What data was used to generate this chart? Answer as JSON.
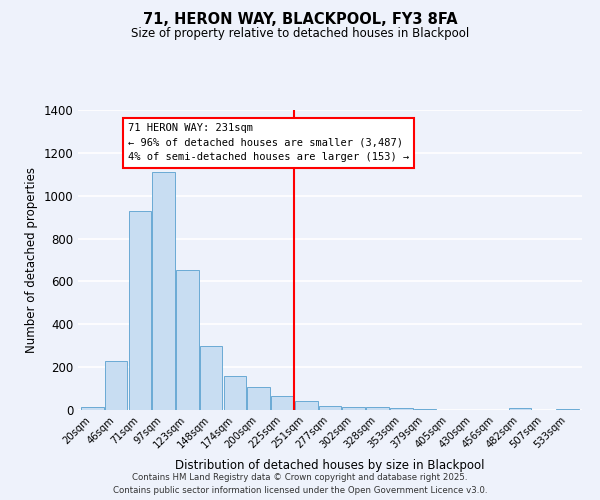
{
  "title": "71, HERON WAY, BLACKPOOL, FY3 8FA",
  "subtitle": "Size of property relative to detached houses in Blackpool",
  "xlabel": "Distribution of detached houses by size in Blackpool",
  "ylabel": "Number of detached properties",
  "bin_labels": [
    "20sqm",
    "46sqm",
    "71sqm",
    "97sqm",
    "123sqm",
    "148sqm",
    "174sqm",
    "200sqm",
    "225sqm",
    "251sqm",
    "277sqm",
    "302sqm",
    "328sqm",
    "353sqm",
    "379sqm",
    "405sqm",
    "430sqm",
    "456sqm",
    "482sqm",
    "507sqm",
    "533sqm"
  ],
  "bar_values": [
    15,
    230,
    930,
    1110,
    655,
    298,
    160,
    108,
    65,
    42,
    20,
    15,
    15,
    10,
    5,
    0,
    0,
    0,
    10,
    0,
    5
  ],
  "bar_color": "#c8ddf2",
  "bar_edge_color": "#6aaad4",
  "vline_x": 8.5,
  "vline_color": "red",
  "annotation_title": "71 HERON WAY: 231sqm",
  "annotation_line1": "← 96% of detached houses are smaller (3,487)",
  "annotation_line2": "4% of semi-detached houses are larger (153) →",
  "annotation_box_color": "white",
  "annotation_box_edge": "red",
  "ylim": [
    0,
    1400
  ],
  "yticks": [
    0,
    200,
    400,
    600,
    800,
    1000,
    1200,
    1400
  ],
  "background_color": "#eef2fb",
  "grid_color": "#ffffff",
  "footer1": "Contains HM Land Registry data © Crown copyright and database right 2025.",
  "footer2": "Contains public sector information licensed under the Open Government Licence v3.0."
}
